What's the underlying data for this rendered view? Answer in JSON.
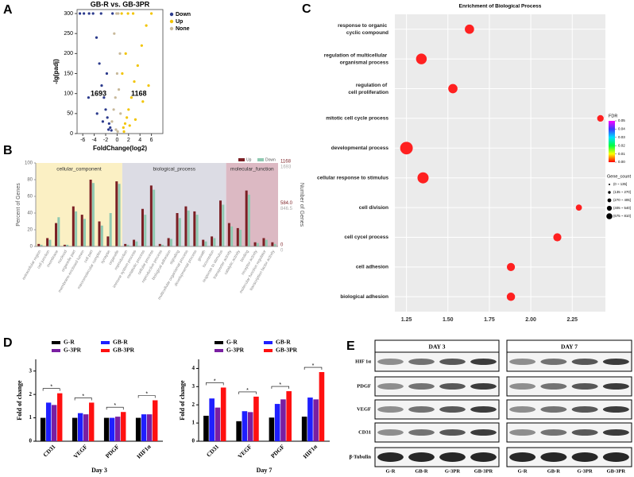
{
  "panel_labels": [
    "A",
    "B",
    "C",
    "D",
    "E"
  ],
  "chart_data": [
    {
      "type": "scatter",
      "title": "GB-R vs. GB-3PR",
      "x_label": "FoldChange(log2)",
      "y_label": "-lg(padj)",
      "xlim": [
        -7,
        8
      ],
      "ylim": [
        0,
        310
      ],
      "xticks": [
        -6,
        -4,
        -2,
        0,
        2,
        4,
        6
      ],
      "yticks": [
        0,
        50,
        100,
        150,
        200,
        250,
        300
      ],
      "annotations": [
        "1693",
        "1168"
      ],
      "series": [
        {
          "name": "Down",
          "color": "#2b3a8c",
          "x": [
            -6.5,
            -5.8,
            -4.9,
            -4.2,
            -3.6,
            -3.1,
            -2.7,
            -2.3,
            -2,
            -1.7,
            -1.4,
            -1.2,
            -3.5,
            -2.5,
            -1.5,
            -1,
            -5,
            -2.8,
            -1.8,
            -0.8
          ],
          "values": [
            300,
            300,
            300,
            300,
            240,
            175,
            120,
            90,
            60,
            40,
            25,
            15,
            50,
            30,
            10,
            8,
            90,
            300,
            150,
            300
          ]
        },
        {
          "name": "Up",
          "color": "#f2c400",
          "x": [
            0.8,
            1.1,
            1.4,
            1.7,
            2,
            2.5,
            3,
            3.6,
            4.3,
            5.1,
            6,
            1.2,
            2.2,
            3.2,
            1.5,
            4.5,
            0.9,
            2.8,
            5.5,
            1.9
          ],
          "values": [
            300,
            15,
            25,
            40,
            60,
            90,
            130,
            170,
            220,
            270,
            300,
            5,
            20,
            35,
            200,
            80,
            150,
            300,
            120,
            300
          ]
        },
        {
          "name": "None",
          "color": "#c8b99a",
          "x": [
            -0.9,
            -0.6,
            -0.3,
            0,
            0.3,
            0.6,
            -0.5,
            0.2,
            0.5,
            -0.2,
            0.1,
            -0.1
          ],
          "values": [
            30,
            60,
            90,
            150,
            110,
            50,
            250,
            300,
            200,
            10,
            5,
            300
          ]
        }
      ]
    },
    {
      "type": "go-bar",
      "y_label": "Percent of Genes",
      "ylim": [
        0,
        100
      ],
      "yticks": [
        0,
        20,
        40,
        60,
        80,
        100
      ],
      "y2": {
        "label": "Number of Genes",
        "up_lim": [
          0,
          1168
        ],
        "up_ticks": [
          0,
          {
            "value": 584,
            "label": "584.0"
          },
          1168
        ],
        "down_lim": [
          0,
          1693
        ],
        "down_ticks": [
          0,
          {
            "value": 846.5,
            "label": "846.5"
          },
          1693
        ]
      },
      "groups": [
        {
          "name": "cellular_component",
          "color": "#fbf0c4",
          "categories": [
            "extracellular region",
            "cell junction",
            "membrane",
            "nucleoid",
            "organelle part",
            "membrane-enclosed lumen",
            "cell part",
            "macromolecular complex",
            "synapse",
            "organelle"
          ]
        },
        {
          "name": "biological_process",
          "color": "#dcdce4",
          "categories": [
            "reproduction",
            "immune system process",
            "metabolic process",
            "cellular process",
            "reproductive process",
            "biological adhesion",
            "signaling",
            "multicellular organismal process",
            "developmental process",
            "growth",
            "locomotion",
            "response to stimulus"
          ]
        },
        {
          "name": "molecular_function",
          "color": "#dcb9c3",
          "categories": [
            "transporter activity",
            "catalytic activity",
            "binding",
            "receptor activity",
            "molecular function regulator",
            "transcription factor activity"
          ]
        }
      ],
      "series": [
        {
          "name": "Up",
          "color": "#7b1f24",
          "values": [
            3,
            10,
            28,
            2,
            48,
            38,
            80,
            30,
            12,
            78,
            3,
            8,
            45,
            73,
            3,
            10,
            40,
            48,
            42,
            8,
            12,
            55,
            28,
            22,
            67,
            5,
            10,
            5
          ]
        },
        {
          "name": "Down",
          "color": "#8fc9b1",
          "values": [
            2,
            8,
            35,
            2,
            42,
            33,
            76,
            25,
            40,
            75,
            2,
            6,
            38,
            68,
            2,
            9,
            34,
            43,
            38,
            6,
            10,
            50,
            24,
            20,
            62,
            4,
            8,
            3
          ]
        }
      ]
    },
    {
      "type": "dot",
      "title": "Enrichment of Biological Process",
      "color": "#ff2020",
      "categories": [
        "response to organic cyclic compound",
        "regulation of multicellular organismal process",
        "regulation of cell proliferation",
        "mitotic cell cycle process",
        "developmental process",
        "cellular response to stimulus",
        "cell division",
        "cell cycel process",
        "cell adhesion",
        "biological adhesion"
      ],
      "values": [
        1.63,
        1.34,
        1.53,
        2.42,
        1.25,
        1.35,
        2.29,
        2.16,
        1.88,
        1.88
      ],
      "sizes": [
        300,
        450,
        300,
        100,
        700,
        500,
        80,
        200,
        200,
        220
      ],
      "xlim": [
        1.18,
        2.45
      ],
      "xticks": [
        {
          "value": 1.25,
          "label": "1.25"
        },
        {
          "value": 1.5,
          "label": "1.50"
        },
        {
          "value": 1.75,
          "label": "1.75"
        },
        {
          "value": 2,
          "label": "2.00"
        },
        {
          "value": 2.25,
          "label": "2.25"
        }
      ],
      "fdr_title": "FDR",
      "fdr_lim": [
        0,
        0.05
      ],
      "fdr_ticks": [
        0.05,
        0.04,
        0.03,
        0.02,
        0.01,
        {
          "value": 0,
          "label": "0.00"
        }
      ],
      "fdr_colors": [
        "#ff00ff",
        "#3b3bff",
        "#00e0ff",
        "#00ff40",
        "#ffff00",
        "#ff0000"
      ],
      "size_title": "Gene_count",
      "size_legend": [
        "(0 ~ 135]",
        "(135 ~ 270]",
        "(270 ~ 405]",
        "(405 ~ 540]",
        "(675 ~ 810]"
      ]
    },
    {
      "type": "bar",
      "title": "Day 3",
      "y_label": "Fold of change",
      "significance_marker": "*",
      "categories": [
        "CD31",
        "VEGF",
        "PDGF",
        "HIF1α"
      ],
      "ylim": [
        0,
        3.5
      ],
      "yticks": [
        0,
        1,
        2,
        3
      ],
      "series": [
        {
          "name": "G-R",
          "color": "#000000",
          "values": [
            1,
            1,
            1,
            1
          ]
        },
        {
          "name": "GB-R",
          "color": "#1f1fff",
          "values": [
            1.65,
            1.2,
            1,
            1.15
          ]
        },
        {
          "name": "G-3PR",
          "color": "#7a1fa2",
          "values": [
            1.55,
            1.15,
            1.05,
            1.15
          ]
        },
        {
          "name": "GB-3PR",
          "color": "#ff1010",
          "values": [
            2.05,
            1.65,
            1.25,
            1.75
          ]
        }
      ]
    },
    {
      "type": "bar",
      "title": "Day 7",
      "y_label": "Fold of change",
      "significance_marker": "*",
      "categories": [
        "CD31",
        "VEGF",
        "PDGF",
        "HIF1α"
      ],
      "ylim": [
        0,
        4.5
      ],
      "yticks": [
        0,
        1,
        2,
        3,
        4
      ],
      "series": [
        {
          "name": "G-R",
          "color": "#000000",
          "values": [
            1.4,
            1.1,
            1.3,
            1.35
          ]
        },
        {
          "name": "GB-R",
          "color": "#1f1fff",
          "values": [
            2.35,
            1.65,
            2.05,
            2.4
          ]
        },
        {
          "name": "G-3PR",
          "color": "#7a1fa2",
          "values": [
            1.85,
            1.6,
            2.3,
            2.3
          ]
        },
        {
          "name": "GB-3PR",
          "color": "#ff1010",
          "values": [
            2.95,
            2.45,
            2.75,
            3.8
          ]
        }
      ]
    }
  ],
  "blot": {
    "days": [
      "DAY 3",
      "DAY 7"
    ],
    "proteins": [
      "HIF 1α",
      "PDGF",
      "VEGF",
      "CD31",
      "β-Tubulin"
    ],
    "lanes": [
      "G-R",
      "GB-R",
      "G-3PR",
      "GB-3PR"
    ]
  }
}
